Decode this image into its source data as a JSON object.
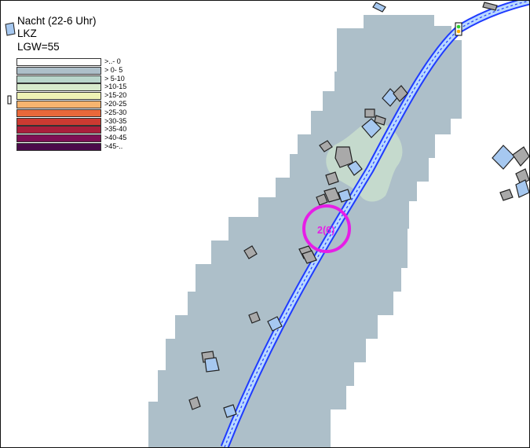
{
  "map": {
    "title_lines": [
      "Nacht (22-6 Uhr)",
      "LKZ",
      "LGW=55"
    ],
    "legend": [
      {
        "label": ">..- 0",
        "color": "#ffffff"
      },
      {
        "label": "> 0- 5",
        "color": "#adbfc9"
      },
      {
        "label": "> 5-10",
        "color": "#b9d6cb"
      },
      {
        "label": ">10-15",
        "color": "#d7ebcc"
      },
      {
        "label": ">15-20",
        "color": "#eef2b4"
      },
      {
        "label": ">20-25",
        "color": "#f7b46f"
      },
      {
        "label": ">25-30",
        "color": "#e9683a"
      },
      {
        "label": ">30-35",
        "color": "#cc3a31"
      },
      {
        "label": ">35-40",
        "color": "#aa1e3c"
      },
      {
        "label": ">40-45",
        "color": "#7e0f55"
      },
      {
        "label": ">45-..",
        "color": "#4b0a4a"
      }
    ],
    "receiver_label": "2(6)",
    "colors": {
      "noise_zone": "#adbfc9",
      "noise_zone_light": "#c9dece",
      "road": "#1f3bff",
      "building_gray": "#a9a9a9",
      "building_blue": "#a6c8f0",
      "receiver_circle": "#e61ee6"
    },
    "icons": [
      "traffic-light-icon"
    ]
  }
}
